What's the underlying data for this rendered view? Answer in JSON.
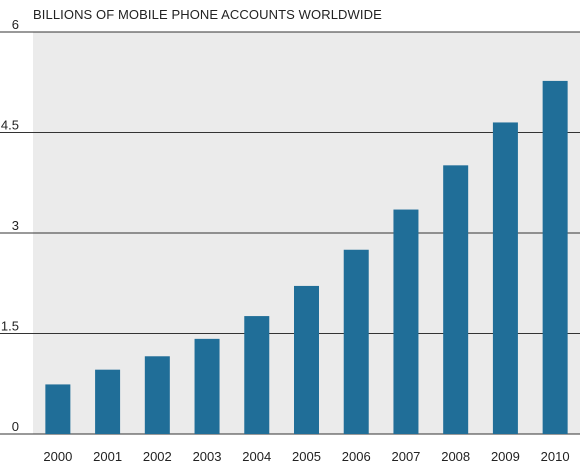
{
  "chart_data": {
    "type": "bar",
    "title": "BILLIONS OF MOBILE PHONE ACCOUNTS WORLDWIDE",
    "xlabel": "",
    "ylabel": "",
    "categories": [
      "2000",
      "2001",
      "2002",
      "2003",
      "2004",
      "2005",
      "2006",
      "2007",
      "2008",
      "2009",
      "2010"
    ],
    "values": [
      0.74,
      0.96,
      1.16,
      1.42,
      1.76,
      2.21,
      2.75,
      3.35,
      4.01,
      4.65,
      5.27
    ],
    "ylim": [
      0,
      6
    ],
    "yticks": [
      "0",
      "1.5",
      "3",
      "4.5",
      "6"
    ],
    "grid": true,
    "legend": "none",
    "colors": {
      "bar": "#206e98",
      "plot_background": "#ebebeb",
      "gridline": "#333333",
      "text": "#222222"
    }
  }
}
